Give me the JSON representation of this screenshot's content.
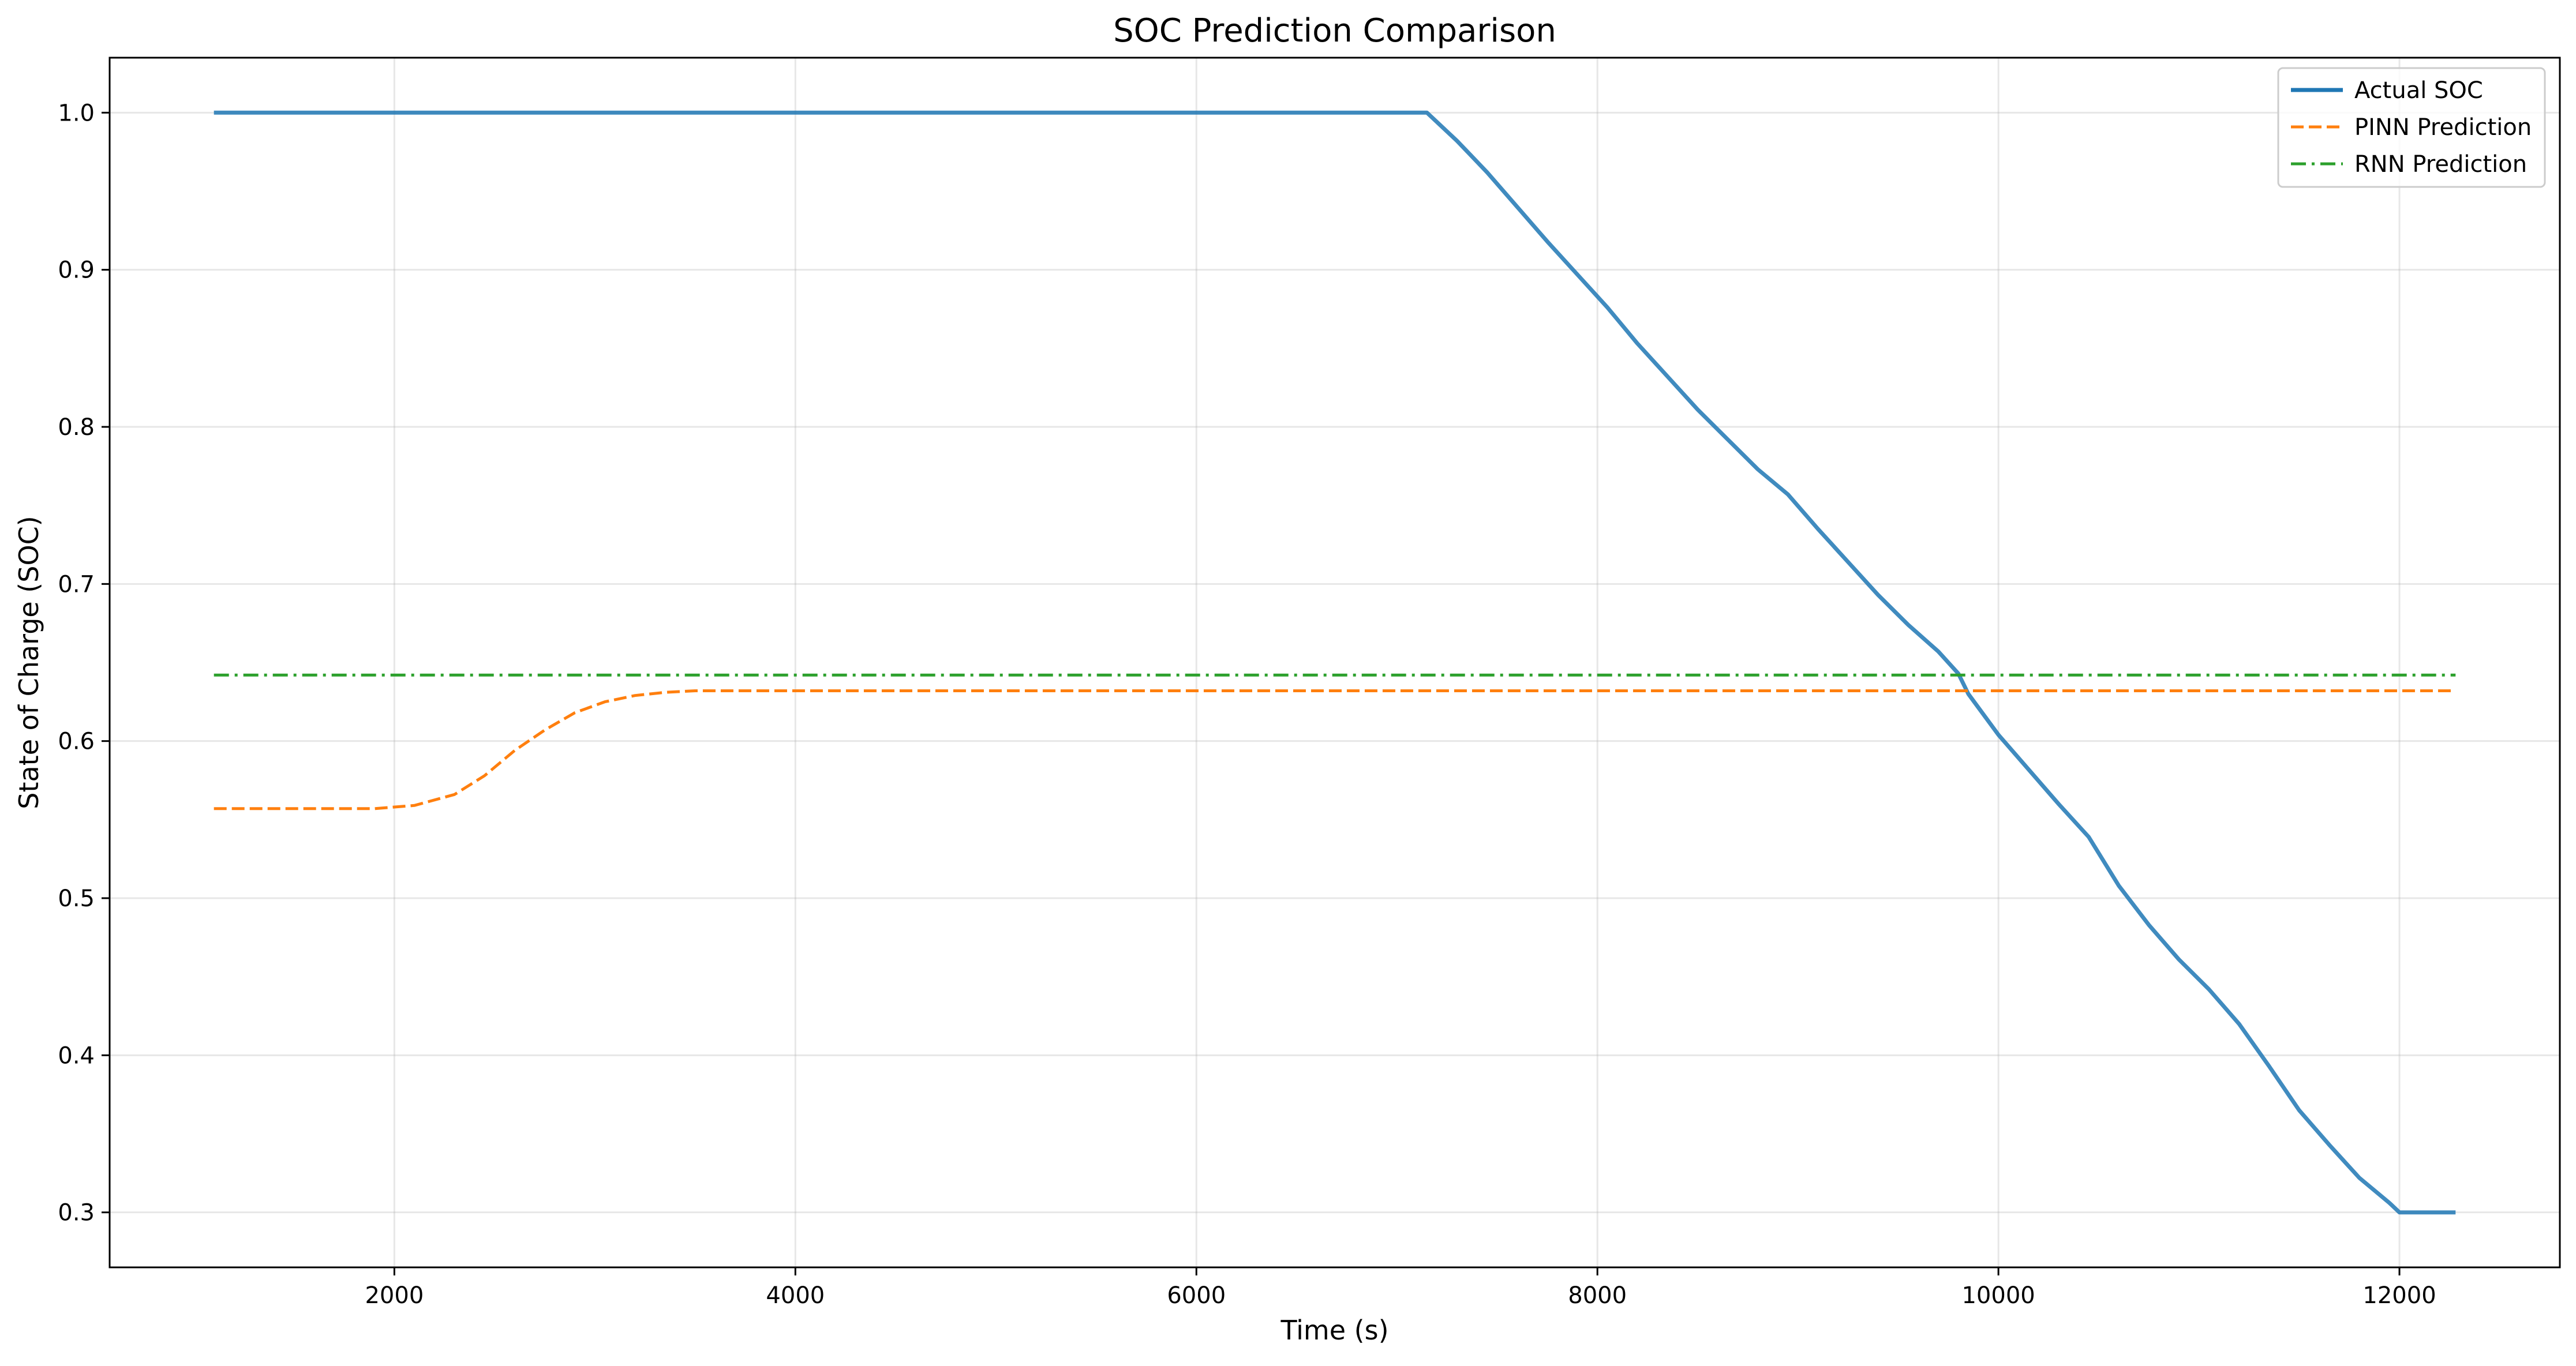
{
  "chart_data": {
    "type": "line",
    "title": "SOC Prediction Comparison",
    "xlabel": "Time (s)",
    "ylabel": "State of Charge (SOC)",
    "xlim": [
      580,
      12800
    ],
    "ylim": [
      0.265,
      1.035
    ],
    "xticks": [
      2000,
      4000,
      6000,
      8000,
      10000,
      12000
    ],
    "yticks": [
      0.3,
      0.4,
      0.5,
      0.6,
      0.7,
      0.8,
      0.9,
      1.0
    ],
    "xtick_labels": [
      "2000",
      "4000",
      "6000",
      "8000",
      "10000",
      "12000"
    ],
    "ytick_labels": [
      "0.3",
      "0.4",
      "0.5",
      "0.6",
      "0.7",
      "0.8",
      "0.9",
      "1.0"
    ],
    "grid": true,
    "legend_position": "top-right",
    "series": [
      {
        "name": "Actual SOC",
        "color": "#1f77b4",
        "style": "solid",
        "x": [
          1100,
          7150,
          7300,
          7450,
          7600,
          7750,
          7900,
          8050,
          8200,
          8350,
          8500,
          8650,
          8800,
          8950,
          9100,
          9250,
          9400,
          9550,
          9700,
          9800,
          9850,
          10000,
          10150,
          10300,
          10450,
          10600,
          10750,
          10900,
          11050,
          11200,
          11350,
          11500,
          11650,
          11800,
          11950,
          12000,
          12280
        ],
        "y": [
          1.0,
          1.0,
          0.982,
          0.962,
          0.94,
          0.918,
          0.897,
          0.876,
          0.853,
          0.832,
          0.811,
          0.792,
          0.773,
          0.757,
          0.735,
          0.714,
          0.693,
          0.674,
          0.657,
          0.643,
          0.63,
          0.604,
          0.582,
          0.56,
          0.539,
          0.508,
          0.483,
          0.461,
          0.442,
          0.42,
          0.393,
          0.365,
          0.343,
          0.322,
          0.306,
          0.3,
          0.3
        ]
      },
      {
        "name": "PINN Prediction",
        "color": "#ff7f0e",
        "style": "dashed",
        "x": [
          1100,
          1500,
          1900,
          2100,
          2300,
          2450,
          2600,
          2750,
          2900,
          3050,
          3200,
          3350,
          3500,
          3700,
          4000,
          6000,
          8000,
          10000,
          12280
        ],
        "y": [
          0.557,
          0.557,
          0.557,
          0.559,
          0.566,
          0.578,
          0.594,
          0.607,
          0.618,
          0.625,
          0.629,
          0.631,
          0.632,
          0.632,
          0.632,
          0.632,
          0.632,
          0.632,
          0.632
        ]
      },
      {
        "name": "RNN Prediction",
        "color": "#2ca02c",
        "style": "dashdot",
        "x": [
          1100,
          12280
        ],
        "y": [
          0.642,
          0.642
        ]
      }
    ]
  }
}
